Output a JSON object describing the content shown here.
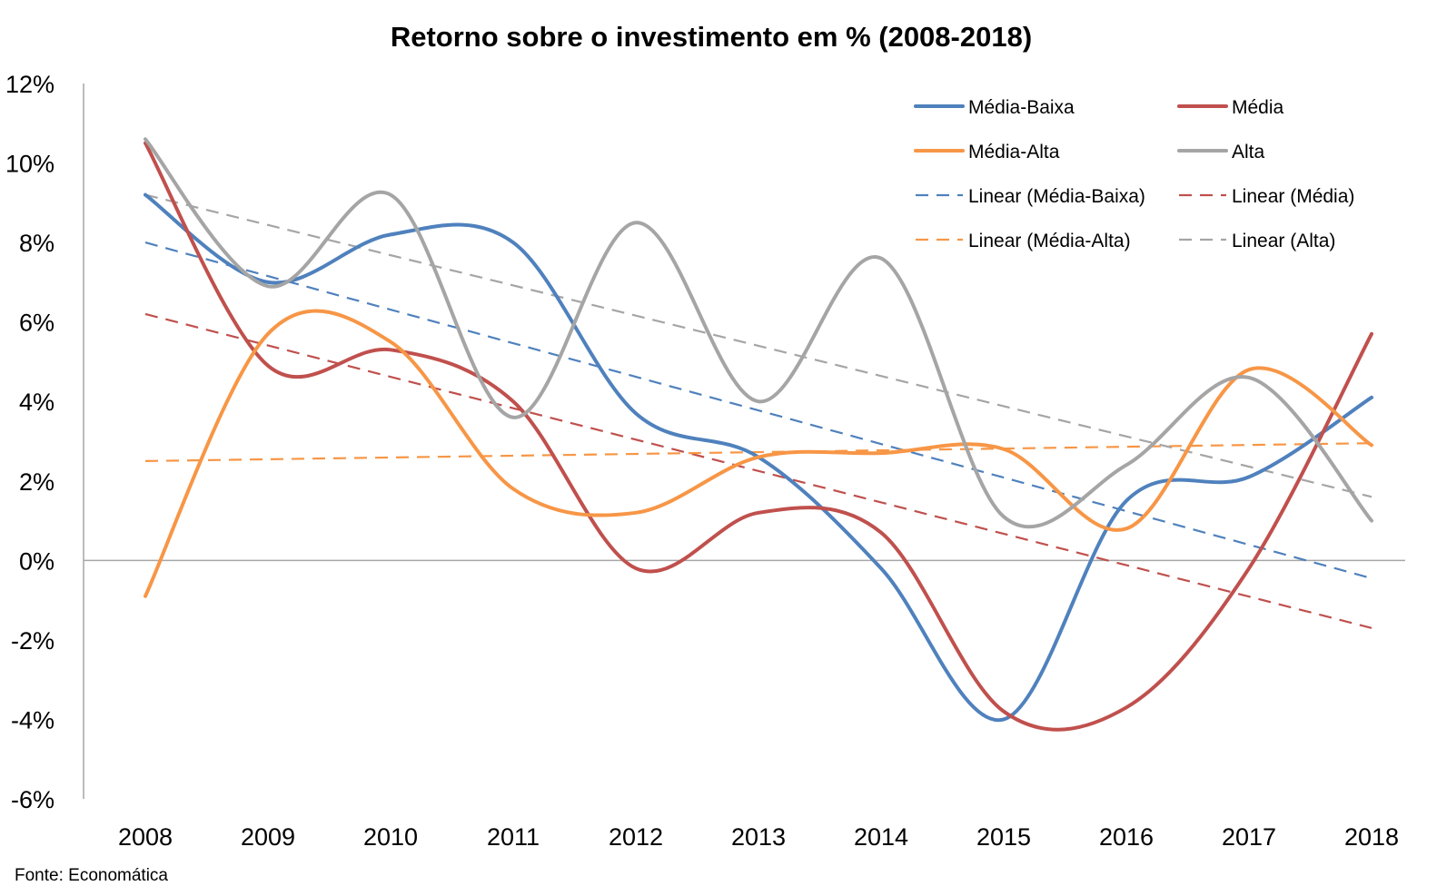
{
  "chart_data": {
    "type": "line",
    "title": "Retorno sobre o investimento em % (2008-2018)",
    "source": "Fonte: Economática",
    "x": [
      "2008",
      "2009",
      "2010",
      "2011",
      "2012",
      "2013",
      "2014",
      "2015",
      "2016",
      "2017",
      "2018"
    ],
    "ylim": [
      -6,
      12
    ],
    "yticks": [
      -6,
      -4,
      -2,
      0,
      2,
      4,
      6,
      8,
      10,
      12
    ],
    "ytick_labels": [
      "-6%",
      "-4%",
      "-2%",
      "0%",
      "2%",
      "4%",
      "6%",
      "8%",
      "10%",
      "12%"
    ],
    "grid": false,
    "smooth": true,
    "legend_position": "top-right",
    "series": [
      {
        "name": "Média-Baixa",
        "color": "#4f81bd",
        "values": [
          9.2,
          7.0,
          8.2,
          8.0,
          3.7,
          2.6,
          -0.2,
          -4.0,
          1.5,
          2.1,
          4.1
        ]
      },
      {
        "name": "Média",
        "color": "#c0504d",
        "values": [
          10.5,
          4.9,
          5.3,
          4.0,
          -0.2,
          1.2,
          0.7,
          -3.8,
          -3.7,
          -0.2,
          5.7
        ]
      },
      {
        "name": "Média-Alta",
        "color": "#f79646",
        "values": [
          -0.9,
          5.7,
          5.5,
          1.8,
          1.2,
          2.6,
          2.7,
          2.8,
          0.8,
          4.8,
          2.9
        ]
      },
      {
        "name": "Alta",
        "color": "#a5a5a5",
        "values": [
          10.6,
          6.9,
          9.2,
          3.6,
          8.5,
          4.0,
          7.6,
          1.1,
          2.4,
          4.6,
          1.0
        ]
      }
    ],
    "trendlines": [
      {
        "name": "Linear (Média-Baixa)",
        "color": "#4f81bd",
        "values": [
          8.0,
          -0.45
        ]
      },
      {
        "name": "Linear (Média)",
        "color": "#c0504d",
        "values": [
          6.2,
          -1.7
        ]
      },
      {
        "name": "Linear (Média-Alta)",
        "color": "#f79646",
        "values": [
          2.5,
          2.95
        ]
      },
      {
        "name": "Linear (Alta)",
        "color": "#a5a5a5",
        "values": [
          9.2,
          1.6
        ]
      }
    ],
    "legend_order": [
      "Média-Baixa",
      "Média",
      "Média-Alta",
      "Alta",
      "Linear (Média-Baixa)",
      "Linear (Média)",
      "Linear (Média-Alta)",
      "Linear (Alta)"
    ]
  }
}
